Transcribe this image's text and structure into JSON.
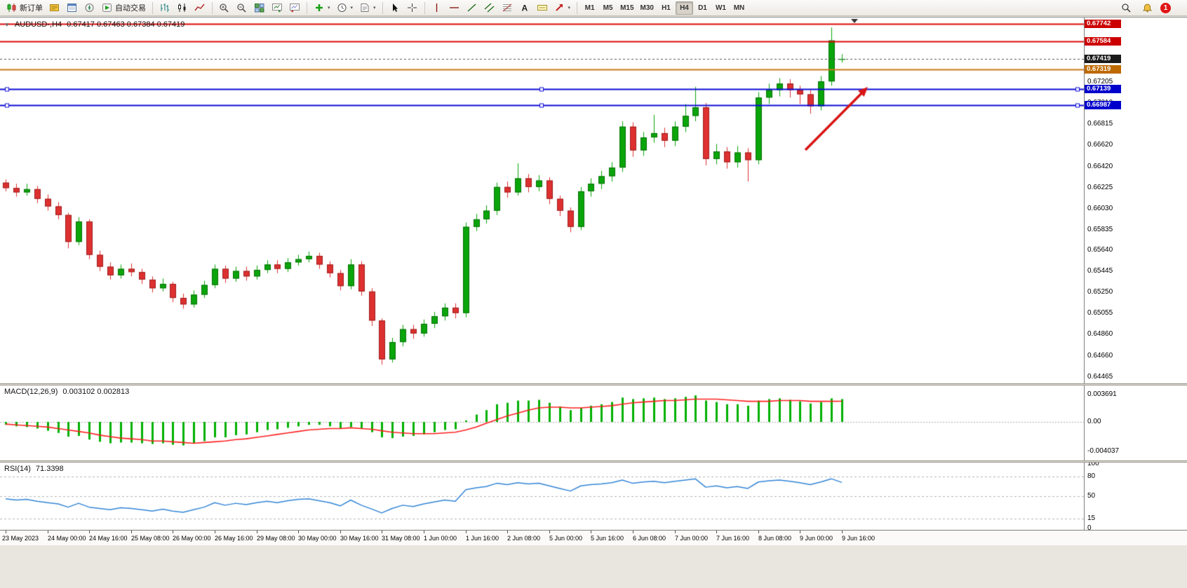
{
  "toolbar": {
    "new_order_label": "新订单",
    "autotrade_label": "自动交易",
    "timeframes": [
      "M1",
      "M5",
      "M15",
      "M30",
      "H1",
      "H4",
      "D1",
      "W1",
      "MN"
    ],
    "active_timeframe": "H4",
    "notification_count": "1"
  },
  "chart": {
    "title": {
      "symbol_period": "AUDUSD-,H4",
      "ohlc": "0.67417 0.67463 0.67384 0.67419"
    }
  },
  "lines": [
    {
      "label": "0.67742",
      "price": 0.67742,
      "color": "#DD0A0A",
      "width": 2,
      "style": "solid",
      "badge_bg": "#CC0000",
      "handles": false
    },
    {
      "label": "0.67584",
      "price": 0.67584,
      "color": "#DD0A0A",
      "width": 2,
      "style": "solid",
      "badge_bg": "#CC0000",
      "handles": false
    },
    {
      "label": "0.67419",
      "price": 0.67419,
      "color": "#555555",
      "width": 1,
      "style": "dashed",
      "badge_bg": "#1A1A1A",
      "handles": false
    },
    {
      "label": "0.67319",
      "price": 0.67319,
      "color": "#C87818",
      "width": 2,
      "style": "solid",
      "badge_bg": "#BE6A00",
      "handles": false
    },
    {
      "label": "0.67139",
      "price": 0.67139,
      "color": "#0D0DD6",
      "width": 2,
      "style": "solid",
      "badge_bg": "#0000CD",
      "handles": true
    },
    {
      "label": "0.66987",
      "price": 0.66987,
      "color": "#0D0DD6",
      "width": 2,
      "style": "solid",
      "badge_bg": "#0000CD",
      "handles": true
    }
  ],
  "price_axis": {
    "grid_labels": [
      {
        "text": "0.67205",
        "price": 0.67205
      },
      {
        "text": "0.67010",
        "price": 0.6701
      },
      {
        "text": "0.66815",
        "price": 0.66815
      },
      {
        "text": "0.66620",
        "price": 0.6662
      },
      {
        "text": "0.66420",
        "price": 0.6642
      },
      {
        "text": "0.66225",
        "price": 0.66225
      },
      {
        "text": "0.66030",
        "price": 0.6603
      },
      {
        "text": "0.65835",
        "price": 0.65835
      },
      {
        "text": "0.65640",
        "price": 0.6564
      },
      {
        "text": "0.65445",
        "price": 0.65445
      },
      {
        "text": "0.65250",
        "price": 0.6525
      },
      {
        "text": "0.65055",
        "price": 0.65055
      },
      {
        "text": "0.64860",
        "price": 0.6486
      },
      {
        "text": "0.64660",
        "price": 0.6466
      },
      {
        "text": "0.64465",
        "price": 0.64465
      }
    ]
  },
  "indicators": {
    "macd": {
      "label": "MACD(12,26,9)",
      "values": "0.003102 0.002813",
      "axis": [
        {
          "text": "0.003691",
          "value": 0.003691
        },
        {
          "text": "0.00",
          "value": 0
        },
        {
          "text": "-0.004037",
          "value": -0.004037
        }
      ]
    },
    "rsi": {
      "label": "RSI(14)",
      "value": "71.3398",
      "axis": [
        {
          "text": "100",
          "value": 100
        },
        {
          "text": "80",
          "value": 80
        },
        {
          "text": "50",
          "value": 50
        },
        {
          "text": "15",
          "value": 15
        },
        {
          "text": "0",
          "value": 0
        }
      ],
      "levels": [
        80,
        50,
        15
      ]
    }
  },
  "annotation": {
    "type": "arrow",
    "color": "#D81414",
    "from": [
      1148,
      189
    ],
    "to": [
      1237,
      99
    ]
  },
  "chart_data": {
    "type": "candlestick",
    "title": "AUDUSD-,H4",
    "y_range": [
      0.6442,
      0.6779
    ],
    "up_color": "#0AA50A",
    "down_color": "#DE3030",
    "x_labels": [
      "23 May 2023",
      "24 May 00:00",
      "24 May 16:00",
      "25 May 08:00",
      "26 May 00:00",
      "26 May 16:00",
      "29 May 08:00",
      "30 May 00:00",
      "30 May 16:00",
      "31 May 08:00",
      "1 Jun 00:00",
      "1 Jun 16:00",
      "2 Jun 08:00",
      "5 Jun 00:00",
      "5 Jun 16:00",
      "6 Jun 08:00",
      "7 Jun 00:00",
      "7 Jun 16:00",
      "8 Jun 08:00",
      "9 Jun 00:00",
      "9 Jun 16:00"
    ],
    "candles_per_label": 4,
    "ohlc": [
      [
        0.6627,
        0.663,
        0.6619,
        0.6622
      ],
      [
        0.6622,
        0.6626,
        0.6614,
        0.6618
      ],
      [
        0.6618,
        0.6626,
        0.6615,
        0.6621
      ],
      [
        0.6621,
        0.6624,
        0.6608,
        0.6612
      ],
      [
        0.6612,
        0.6616,
        0.6601,
        0.6605
      ],
      [
        0.6605,
        0.6609,
        0.6593,
        0.6597
      ],
      [
        0.6597,
        0.6599,
        0.6566,
        0.6572
      ],
      [
        0.6572,
        0.6595,
        0.6569,
        0.6591
      ],
      [
        0.6591,
        0.6593,
        0.6556,
        0.656
      ],
      [
        0.656,
        0.6564,
        0.6545,
        0.6549
      ],
      [
        0.6549,
        0.6553,
        0.6537,
        0.6541
      ],
      [
        0.6541,
        0.6551,
        0.6538,
        0.6547
      ],
      [
        0.6547,
        0.6552,
        0.654,
        0.6544
      ],
      [
        0.6544,
        0.6547,
        0.6533,
        0.6537
      ],
      [
        0.6537,
        0.654,
        0.6525,
        0.6529
      ],
      [
        0.6529,
        0.6538,
        0.6526,
        0.6533
      ],
      [
        0.6533,
        0.6535,
        0.6516,
        0.652
      ],
      [
        0.652,
        0.6524,
        0.651,
        0.6514
      ],
      [
        0.6514,
        0.6527,
        0.6511,
        0.6523
      ],
      [
        0.6523,
        0.6536,
        0.652,
        0.6532
      ],
      [
        0.6532,
        0.6551,
        0.6529,
        0.6547
      ],
      [
        0.6547,
        0.655,
        0.6534,
        0.6538
      ],
      [
        0.6538,
        0.6549,
        0.6535,
        0.6545
      ],
      [
        0.6545,
        0.6549,
        0.6536,
        0.654
      ],
      [
        0.654,
        0.655,
        0.6537,
        0.6546
      ],
      [
        0.6546,
        0.6555,
        0.6543,
        0.6551
      ],
      [
        0.6551,
        0.6555,
        0.6543,
        0.6547
      ],
      [
        0.6547,
        0.6557,
        0.6544,
        0.6553
      ],
      [
        0.6553,
        0.656,
        0.655,
        0.6556
      ],
      [
        0.6556,
        0.6563,
        0.6553,
        0.6559
      ],
      [
        0.6559,
        0.6562,
        0.6547,
        0.6551
      ],
      [
        0.6551,
        0.6554,
        0.6539,
        0.6543
      ],
      [
        0.6543,
        0.6546,
        0.6527,
        0.6531
      ],
      [
        0.6531,
        0.6556,
        0.6528,
        0.6551
      ],
      [
        0.6551,
        0.6554,
        0.6522,
        0.6526
      ],
      [
        0.6526,
        0.6529,
        0.6494,
        0.6499
      ],
      [
        0.6499,
        0.6501,
        0.6458,
        0.6463
      ],
      [
        0.6463,
        0.6483,
        0.646,
        0.6479
      ],
      [
        0.6479,
        0.6495,
        0.6475,
        0.6491
      ],
      [
        0.6491,
        0.6495,
        0.6482,
        0.6487
      ],
      [
        0.6487,
        0.65,
        0.6484,
        0.6496
      ],
      [
        0.6496,
        0.6507,
        0.6492,
        0.6503
      ],
      [
        0.6503,
        0.6515,
        0.6499,
        0.6511
      ],
      [
        0.6511,
        0.6515,
        0.6501,
        0.6506
      ],
      [
        0.6506,
        0.659,
        0.6502,
        0.6586
      ],
      [
        0.6586,
        0.6598,
        0.6582,
        0.6593
      ],
      [
        0.6593,
        0.6606,
        0.6589,
        0.6601
      ],
      [
        0.6601,
        0.6627,
        0.6597,
        0.6623
      ],
      [
        0.6623,
        0.6628,
        0.6613,
        0.6618
      ],
      [
        0.6618,
        0.6645,
        0.6615,
        0.6631
      ],
      [
        0.6631,
        0.6635,
        0.6618,
        0.6623
      ],
      [
        0.6623,
        0.6634,
        0.6619,
        0.6629
      ],
      [
        0.6629,
        0.6632,
        0.6607,
        0.6612
      ],
      [
        0.6612,
        0.6615,
        0.6596,
        0.6601
      ],
      [
        0.6601,
        0.6604,
        0.6581,
        0.6586
      ],
      [
        0.6586,
        0.6623,
        0.6583,
        0.6619
      ],
      [
        0.6619,
        0.6631,
        0.6614,
        0.6626
      ],
      [
        0.6626,
        0.6638,
        0.6621,
        0.6633
      ],
      [
        0.6633,
        0.6646,
        0.6628,
        0.6641
      ],
      [
        0.6641,
        0.6684,
        0.6637,
        0.6679
      ],
      [
        0.6679,
        0.6683,
        0.6651,
        0.6657
      ],
      [
        0.6657,
        0.6674,
        0.6652,
        0.6669
      ],
      [
        0.6669,
        0.669,
        0.6664,
        0.6673
      ],
      [
        0.6673,
        0.6678,
        0.666,
        0.6666
      ],
      [
        0.6666,
        0.6684,
        0.6661,
        0.6679
      ],
      [
        0.6679,
        0.67,
        0.6674,
        0.6689
      ],
      [
        0.6689,
        0.6716,
        0.6684,
        0.6697
      ],
      [
        0.6697,
        0.6701,
        0.6643,
        0.6649
      ],
      [
        0.6649,
        0.6663,
        0.6644,
        0.6656
      ],
      [
        0.6656,
        0.666,
        0.664,
        0.6646
      ],
      [
        0.6646,
        0.6661,
        0.6641,
        0.6655
      ],
      [
        0.6655,
        0.6659,
        0.6628,
        0.6648
      ],
      [
        0.6648,
        0.6711,
        0.6644,
        0.6706
      ],
      [
        0.6706,
        0.6719,
        0.67,
        0.6713
      ],
      [
        0.6713,
        0.6724,
        0.6707,
        0.6719
      ],
      [
        0.6719,
        0.6723,
        0.6706,
        0.6713
      ],
      [
        0.6713,
        0.6717,
        0.67,
        0.6709
      ],
      [
        0.6709,
        0.6713,
        0.6691,
        0.6698
      ],
      [
        0.6698,
        0.6726,
        0.6694,
        0.6721
      ],
      [
        0.6721,
        0.6771,
        0.6717,
        0.6759
      ],
      [
        0.67417,
        0.67463,
        0.67384,
        0.67419
      ]
    ],
    "macd_hist": [
      -0.0004,
      -0.0006,
      -0.0007,
      -0.0009,
      -0.0012,
      -0.0015,
      -0.002,
      -0.0019,
      -0.0024,
      -0.0027,
      -0.0029,
      -0.0028,
      -0.0028,
      -0.0029,
      -0.003,
      -0.0029,
      -0.0031,
      -0.0032,
      -0.0029,
      -0.0026,
      -0.0021,
      -0.0021,
      -0.0018,
      -0.0017,
      -0.0014,
      -0.0011,
      -0.001,
      -0.0008,
      -0.0006,
      -0.0004,
      -0.0004,
      -0.0006,
      -0.0009,
      -0.0007,
      -0.0009,
      -0.0014,
      -0.0021,
      -0.0022,
      -0.002,
      -0.0019,
      -0.0017,
      -0.0014,
      -0.0011,
      -0.001,
      0.0002,
      0.001,
      0.0016,
      0.0024,
      0.0026,
      0.0029,
      0.0029,
      0.003,
      0.0026,
      0.0021,
      0.0016,
      0.0019,
      0.0022,
      0.0024,
      0.0027,
      0.0033,
      0.0031,
      0.0032,
      0.0033,
      0.0031,
      0.0032,
      0.0034,
      0.0036,
      0.0029,
      0.0027,
      0.0024,
      0.0024,
      0.0022,
      0.0029,
      0.0031,
      0.0032,
      0.003,
      0.0028,
      0.0025,
      0.0027,
      0.0032,
      0.003102
    ],
    "macd_signal": [
      -0.0003,
      -0.0004,
      -0.0005,
      -0.0006,
      -0.0007,
      -0.0009,
      -0.0011,
      -0.0013,
      -0.0015,
      -0.0018,
      -0.002,
      -0.0022,
      -0.0023,
      -0.0024,
      -0.0026,
      -0.0026,
      -0.0027,
      -0.0028,
      -0.0029,
      -0.0028,
      -0.0027,
      -0.0026,
      -0.0024,
      -0.0023,
      -0.0021,
      -0.0019,
      -0.0017,
      -0.0015,
      -0.0013,
      -0.0011,
      -0.001,
      -0.0009,
      -0.0009,
      -0.0008,
      -0.0009,
      -0.001,
      -0.0012,
      -0.0014,
      -0.0015,
      -0.0016,
      -0.0016,
      -0.0016,
      -0.0015,
      -0.0014,
      -0.0011,
      -0.0007,
      -0.0002,
      0.0003,
      0.0008,
      0.0012,
      0.0016,
      0.0019,
      0.002,
      0.002,
      0.0019,
      0.0019,
      0.002,
      0.0021,
      0.0022,
      0.0024,
      0.0026,
      0.0027,
      0.0028,
      0.0029,
      0.0029,
      0.003,
      0.0031,
      0.0031,
      0.0031,
      0.003,
      0.0029,
      0.0028,
      0.0028,
      0.0028,
      0.0029,
      0.0029,
      0.0029,
      0.0028,
      0.0028,
      0.0028,
      0.002813
    ],
    "rsi_values": [
      46,
      44,
      45,
      42,
      40,
      38,
      33,
      39,
      33,
      31,
      29,
      32,
      31,
      29,
      27,
      30,
      27,
      25,
      29,
      33,
      40,
      36,
      39,
      37,
      40,
      42,
      40,
      43,
      45,
      46,
      43,
      40,
      35,
      44,
      36,
      30,
      24,
      31,
      36,
      34,
      38,
      41,
      44,
      42,
      60,
      63,
      65,
      70,
      68,
      71,
      69,
      70,
      66,
      62,
      58,
      66,
      68,
      69,
      71,
      75,
      70,
      72,
      73,
      71,
      73,
      75,
      77,
      64,
      66,
      63,
      65,
      62,
      72,
      74,
      75,
      73,
      71,
      68,
      72,
      77,
      71.3398
    ]
  }
}
